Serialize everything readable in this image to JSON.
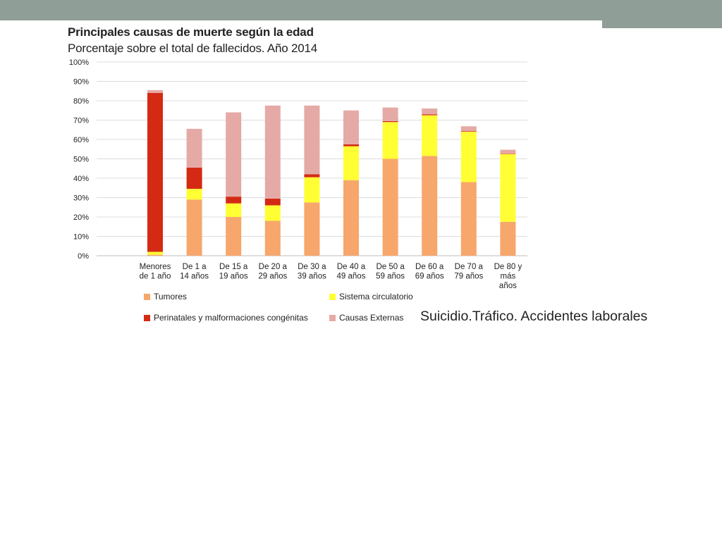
{
  "annotation": "Suicidio.Tráfico. Accidentes laborales",
  "colors": {
    "header_bar": "#8f9e96",
    "tumores": "#f7a66c",
    "sistema_circulatorio": "#ffff33",
    "perinatales": "#d42a14",
    "causas_externas": "#e5aaa6"
  },
  "chart_data": {
    "type": "bar",
    "stacked": true,
    "title": "Principales causas de muerte según la edad",
    "subtitle": "Porcentaje sobre el total de fallecidos. Año 2014",
    "ylim": [
      0,
      100
    ],
    "yticks": [
      "0%",
      "10%",
      "20%",
      "30%",
      "40%",
      "50%",
      "60%",
      "70%",
      "80%",
      "90%",
      "100%"
    ],
    "grid": true,
    "legend": "bottom",
    "categories": [
      [
        "Menores",
        "de 1 año"
      ],
      [
        "De 1 a",
        "14 años"
      ],
      [
        "De 15 a",
        "19 años"
      ],
      [
        "De 20 a",
        "29 años"
      ],
      [
        "De 30 a",
        "39 años"
      ],
      [
        "De 40 a",
        "49 años"
      ],
      [
        "De 50 a",
        "59 años"
      ],
      [
        "De 60 a",
        "69 años"
      ],
      [
        "De 70 a",
        "79 años"
      ],
      [
        "De 80 y",
        "más",
        "años"
      ]
    ],
    "series": [
      {
        "name": "Tumores",
        "color": "#f7a66c",
        "values": [
          0.5,
          29,
          20,
          18,
          27.5,
          39,
          50,
          51.5,
          38,
          17.5
        ]
      },
      {
        "name": "Sistema circulatorio",
        "color": "#ffff33",
        "values": [
          1.5,
          5.5,
          7,
          8,
          13,
          17.5,
          19,
          21,
          26,
          35
        ]
      },
      {
        "name": "Perinatales y malformaciones congénitas",
        "color": "#d42a14",
        "values": [
          82,
          11,
          3.5,
          3.5,
          1.5,
          1,
          0.5,
          0.5,
          0.3,
          0.2
        ]
      },
      {
        "name": "Causas Externas",
        "color": "#e5aaa6",
        "values": [
          1.5,
          20,
          43.5,
          48,
          35.5,
          17.5,
          7,
          3,
          2.5,
          2
        ]
      }
    ]
  }
}
